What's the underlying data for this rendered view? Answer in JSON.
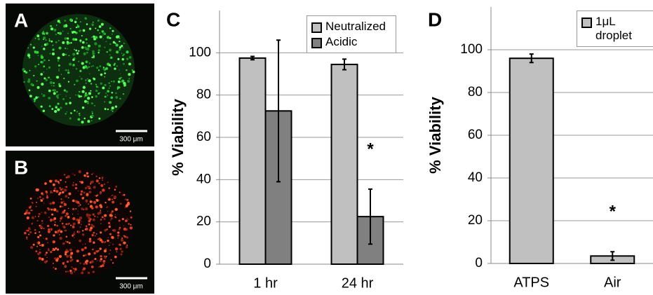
{
  "images": [
    {
      "label": "A",
      "scale_bar": "300 μm"
    },
    {
      "label": "B",
      "scale_bar": "300 μm"
    }
  ],
  "chart_data": [
    {
      "type": "bar",
      "label": "C",
      "y_label": "% Viability",
      "categories": [
        "1 hr",
        "24 hr"
      ],
      "series": [
        {
          "name": "Neutralized",
          "color": "#c0c0c0",
          "values": [
            97.5,
            94.5
          ],
          "errors": [
            0.8,
            2.5
          ]
        },
        {
          "name": "Acidic",
          "color": "#808080",
          "values": [
            72.5,
            22.5
          ],
          "errors": [
            33.5,
            13
          ]
        }
      ],
      "ylim": [
        0,
        120
      ],
      "yticks": [
        0,
        20,
        40,
        60,
        80,
        100
      ],
      "grid": true,
      "legend": "top-right",
      "annotation": "*"
    },
    {
      "type": "bar",
      "label": "D",
      "y_label": "% Viability",
      "categories": [
        "ATPS",
        "Air"
      ],
      "series": [
        {
          "name": "1μL droplet",
          "color": "#c0c0c0",
          "values": [
            96,
            3.5
          ],
          "errors": [
            2,
            2
          ]
        }
      ],
      "ylim": [
        0,
        120
      ],
      "yticks": [
        0,
        20,
        40,
        60,
        80,
        100
      ],
      "grid": true,
      "legend": "top-right",
      "annotation": "*"
    }
  ]
}
